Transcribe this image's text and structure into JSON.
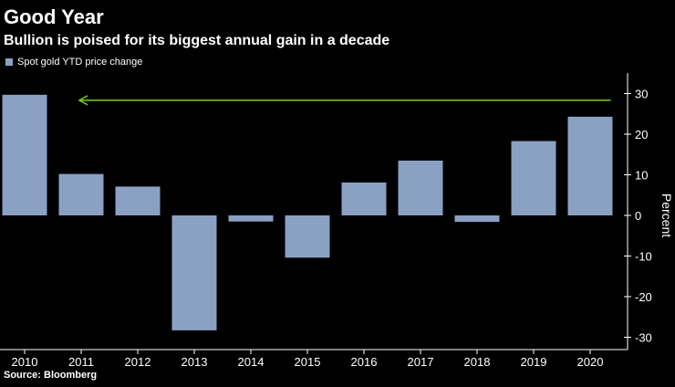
{
  "header": {
    "title": "Good Year",
    "subtitle": "Bullion is poised for its biggest annual gain in a decade"
  },
  "footer": {
    "source": "Source: Bloomberg"
  },
  "colors": {
    "background": "#000000",
    "bar": "#8aa1c4",
    "arrow": "#7ed321",
    "text": "#ffffff",
    "axis": "#ffffff"
  },
  "chart_data": {
    "type": "bar",
    "title": "Good Year",
    "subtitle": "Bullion is poised for its biggest annual gain in a decade",
    "legend": {
      "position": "top-left",
      "entries": [
        "Spot gold YTD price change"
      ]
    },
    "categories": [
      "2010",
      "2011",
      "2012",
      "2013",
      "2014",
      "2015",
      "2016",
      "2017",
      "2018",
      "2019",
      "2020"
    ],
    "series": [
      {
        "name": "Spot gold YTD price change",
        "values": [
          29.7,
          10.2,
          7.1,
          -28.3,
          -1.5,
          -10.4,
          8.1,
          13.5,
          -1.6,
          18.3,
          24.3
        ]
      }
    ],
    "xlabel": "",
    "ylabel": "Percent",
    "ylim": [
      -33,
      33
    ],
    "yticks": [
      30,
      20,
      10,
      0,
      -10,
      -20,
      -30
    ],
    "ytick_labels": [
      "30",
      "20",
      "10",
      "0",
      "-10",
      "-20",
      "-30"
    ],
    "y_axis_side": "right",
    "grid": false,
    "annotations": [
      {
        "type": "arrow",
        "from_category": "2020",
        "to_category": "2011",
        "y": 24.3,
        "color": "#7ed321"
      }
    ]
  }
}
